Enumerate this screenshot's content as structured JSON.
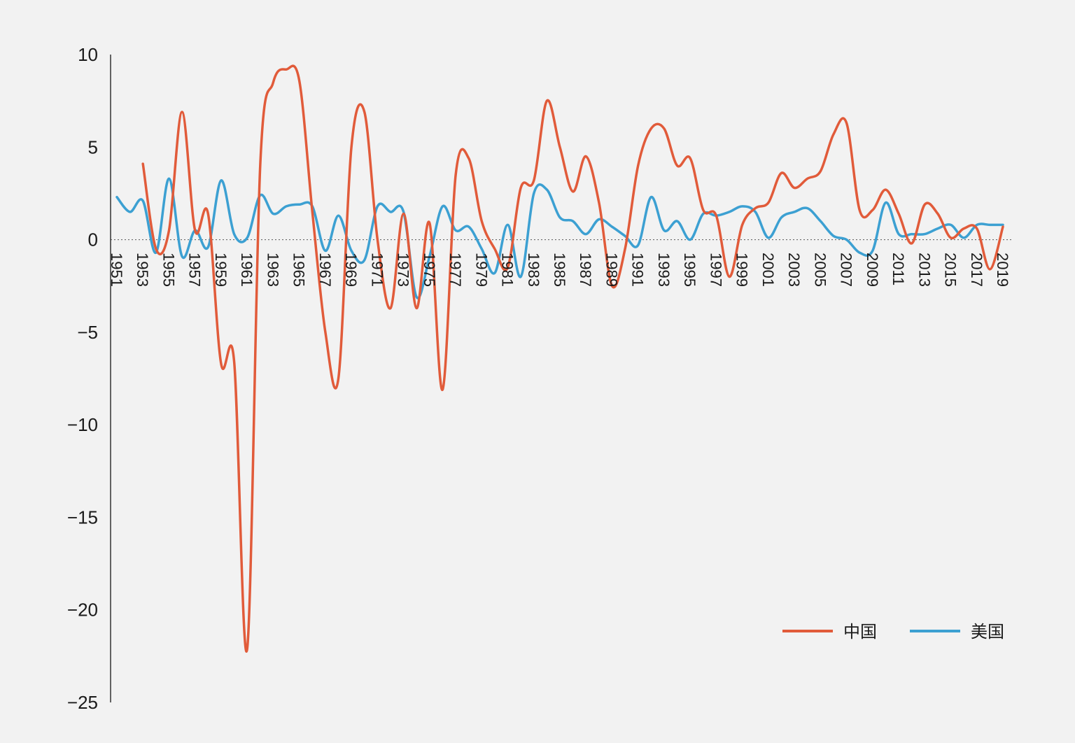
{
  "chart_data": {
    "type": "line",
    "title": "",
    "xlabel": "",
    "ylabel": "",
    "ylim": [
      -25,
      10
    ],
    "yticks": [
      10,
      5,
      0,
      -5,
      -10,
      -15,
      -20,
      -25
    ],
    "ytick_labels": [
      "10",
      "5",
      "0",
      "−5",
      "−10",
      "−15",
      "−20",
      "−25"
    ],
    "xlim": [
      1951,
      2019
    ],
    "xticks": [
      "1951",
      "1953",
      "1955",
      "1957",
      "1959",
      "1961",
      "1963",
      "1965",
      "1967",
      "1969",
      "1971",
      "1973",
      "1975",
      "1977",
      "1979",
      "1981",
      "1983",
      "1985",
      "1987",
      "1989",
      "1991",
      "1993",
      "1995",
      "1997",
      "1999",
      "2001",
      "2003",
      "2005",
      "2007",
      "2009",
      "2011",
      "2013",
      "2015",
      "2017",
      "2019"
    ],
    "grid": false,
    "zero_line": "dotted",
    "legend_position": "bottom-right",
    "colors": {
      "china": "#e15b3a",
      "usa": "#3ca0d2",
      "axis": "#333333",
      "background": "#f2f2f2"
    },
    "series": [
      {
        "name": "中国",
        "key": "china",
        "x": [
          1953,
          1954,
          1955,
          1956,
          1957,
          1958,
          1959,
          1960,
          1961,
          1962,
          1963,
          1964,
          1965,
          1966,
          1967,
          1968,
          1969,
          1970,
          1971,
          1972,
          1973,
          1974,
          1975,
          1976,
          1977,
          1978,
          1979,
          1980,
          1981,
          1982,
          1983,
          1984,
          1985,
          1986,
          1987,
          1988,
          1989,
          1990,
          1991,
          1992,
          1993,
          1994,
          1995,
          1996,
          1997,
          1998,
          1999,
          2000,
          2001,
          2002,
          2003,
          2004,
          2005,
          2006,
          2007,
          2008,
          2009,
          2010,
          2011,
          2012,
          2013,
          2014,
          2015,
          2016,
          2017,
          2018,
          2019
        ],
        "values": [
          4.1,
          -0.5,
          0.5,
          6.9,
          0.5,
          1.4,
          -6.7,
          -6.6,
          -22.1,
          4.0,
          8.5,
          9.2,
          8.6,
          1.5,
          -5.0,
          -7.5,
          5.0,
          6.9,
          0.0,
          -3.7,
          1.4,
          -3.7,
          0.9,
          -8.1,
          3.5,
          4.4,
          1.0,
          -0.5,
          -1.5,
          2.8,
          3.2,
          7.5,
          5.0,
          2.6,
          4.5,
          2.0,
          -2.5,
          -0.5,
          4.0,
          6.0,
          6.0,
          4.0,
          4.4,
          1.6,
          1.3,
          -2.0,
          0.8,
          1.7,
          2.0,
          3.6,
          2.8,
          3.3,
          3.7,
          5.7,
          6.3,
          1.6,
          1.6,
          2.7,
          1.4,
          -0.2,
          1.9,
          1.4,
          0.1,
          0.6,
          0.6,
          -1.6,
          0.7
        ]
      },
      {
        "name": "美国",
        "key": "usa",
        "x": [
          1951,
          1952,
          1953,
          1954,
          1955,
          1956,
          1957,
          1958,
          1959,
          1960,
          1961,
          1962,
          1963,
          1964,
          1965,
          1966,
          1967,
          1968,
          1969,
          1970,
          1971,
          1972,
          1973,
          1974,
          1975,
          1976,
          1977,
          1978,
          1979,
          1980,
          1981,
          1982,
          1983,
          1984,
          1985,
          1986,
          1987,
          1988,
          1989,
          1990,
          1991,
          1992,
          1993,
          1994,
          1995,
          1996,
          1997,
          1998,
          1999,
          2000,
          2001,
          2002,
          2003,
          2004,
          2005,
          2006,
          2007,
          2008,
          2009,
          2010,
          2011,
          2012,
          2013,
          2014,
          2015,
          2016,
          2017,
          2018,
          2019
        ],
        "values": [
          2.3,
          1.5,
          2.1,
          -0.7,
          3.3,
          -0.9,
          0.5,
          -0.4,
          3.2,
          0.3,
          0.1,
          2.4,
          1.4,
          1.8,
          1.9,
          1.8,
          -0.6,
          1.3,
          -0.6,
          -1.1,
          1.8,
          1.5,
          1.5,
          -3.1,
          -0.9,
          1.8,
          0.5,
          0.7,
          -0.5,
          -1.8,
          0.8,
          -2.0,
          2.5,
          2.7,
          1.2,
          1.0,
          0.3,
          1.1,
          0.7,
          0.2,
          -0.3,
          2.3,
          0.5,
          1.0,
          0.0,
          1.4,
          1.3,
          1.5,
          1.8,
          1.5,
          0.1,
          1.2,
          1.5,
          1.7,
          1.0,
          0.2,
          0.0,
          -0.7,
          -0.6,
          2.0,
          0.3,
          0.3,
          0.3,
          0.6,
          0.8,
          0.1,
          0.8,
          0.8,
          0.8
        ]
      }
    ]
  }
}
